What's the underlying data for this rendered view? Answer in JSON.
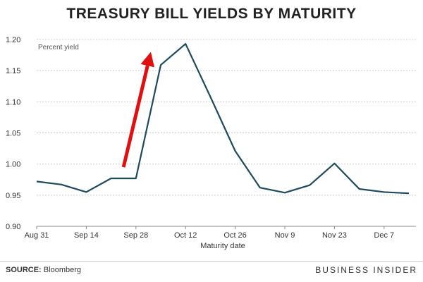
{
  "chart_data": {
    "type": "line",
    "title": "TREASURY BILL YIELDS BY MATURITY",
    "ylabel": "Percent yield",
    "xlabel": "Maturity date",
    "ylim": [
      0.9,
      1.2
    ],
    "yticks": [
      "0.90",
      "0.95",
      "1.00",
      "1.05",
      "1.10",
      "1.15",
      "1.20"
    ],
    "ytick_values": [
      0.9,
      0.95,
      1.0,
      1.05,
      1.1,
      1.15,
      1.2
    ],
    "xticks": [
      "Aug 31",
      "Sep 14",
      "Sep 28",
      "Oct 12",
      "Oct 26",
      "Nov 9",
      "Nov 23",
      "Dec 7"
    ],
    "xtick_index": [
      0,
      2,
      4,
      6,
      8,
      10,
      12,
      14
    ],
    "x": [
      "Aug 31",
      "Sep 7",
      "Sep 14",
      "Sep 21",
      "Sep 28",
      "Oct 5",
      "Oct 12",
      "Oct 19",
      "Oct 26",
      "Nov 2",
      "Nov 9",
      "Nov 16",
      "Nov 23",
      "Nov 30",
      "Dec 7",
      "Dec 14"
    ],
    "series": [
      {
        "name": "Percent yield",
        "color": "#1d4a5c",
        "values": [
          0.972,
          0.967,
          0.955,
          0.977,
          0.977,
          1.159,
          1.193,
          1.108,
          1.021,
          0.962,
          0.954,
          0.966,
          1.001,
          0.96,
          0.955,
          0.953
        ]
      }
    ],
    "annotation": {
      "type": "arrow",
      "color": "#e01010",
      "from_index": 3.5,
      "from_value": 0.995,
      "to_index": 4.6,
      "to_value": 1.18
    },
    "grid": true
  },
  "footer": {
    "source_label": "SOURCE:",
    "source": "Bloomberg",
    "brand": "BUSINESS INSIDER"
  }
}
